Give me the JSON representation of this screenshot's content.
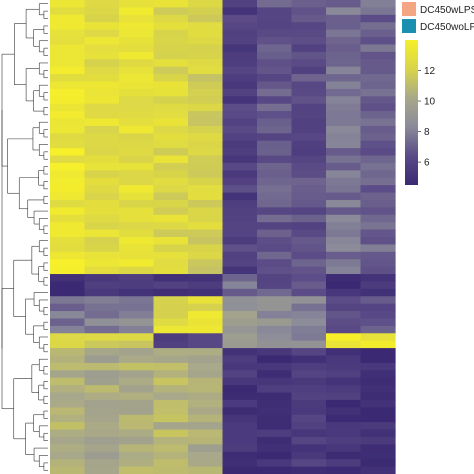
{
  "chart_data": {
    "type": "heatmap",
    "title": "",
    "xlabel": "",
    "ylabel": "",
    "legend": {
      "placement": "top-right",
      "entries": [
        {
          "label": "DC450wLPS",
          "color": "#f4a582"
        },
        {
          "label": "DC450woLPS",
          "color": "#1a8fb0"
        }
      ]
    },
    "colorbar": {
      "placement": "right",
      "range": [
        4.5,
        14
      ],
      "ticks": [
        "12",
        "10",
        "8",
        "6"
      ],
      "tick_values": [
        12,
        10,
        8,
        6
      ],
      "colors": [
        "#3b2a73",
        "#5a4a86",
        "#8a8a9a",
        "#a8a88a",
        "#d8d44a",
        "#f6ef2a"
      ]
    },
    "grid": false,
    "dendrogram": "rows",
    "columns": 10,
    "rows": 64,
    "blocks": [
      {
        "row_range": [
          0,
          37
        ],
        "col_values": [
          13.2,
          12.8,
          12.9,
          12.4,
          12.1,
          5.8,
          6.8,
          6.4,
          7.6,
          7.2
        ]
      },
      {
        "row_range": [
          37,
          40
        ],
        "col_values": [
          4.8,
          5.2,
          5.6,
          5.4,
          5.0,
          7.4,
          6.6,
          6.2,
          5.0,
          5.6
        ]
      },
      {
        "row_range": [
          40,
          45
        ],
        "col_values": [
          7.6,
          8.0,
          8.2,
          12.6,
          12.8,
          9.4,
          8.8,
          8.2,
          6.2,
          6.8
        ]
      },
      {
        "row_range": [
          45,
          47
        ],
        "col_values": [
          12.6,
          12.2,
          11.8,
          5.4,
          5.6,
          9.2,
          8.6,
          8.4,
          13.6,
          13.2
        ]
      },
      {
        "row_range": [
          47,
          64
        ],
        "col_values": [
          10.8,
          10.2,
          10.6,
          10.8,
          10.4,
          5.2,
          5.0,
          5.4,
          5.2,
          5.0
        ]
      }
    ]
  }
}
